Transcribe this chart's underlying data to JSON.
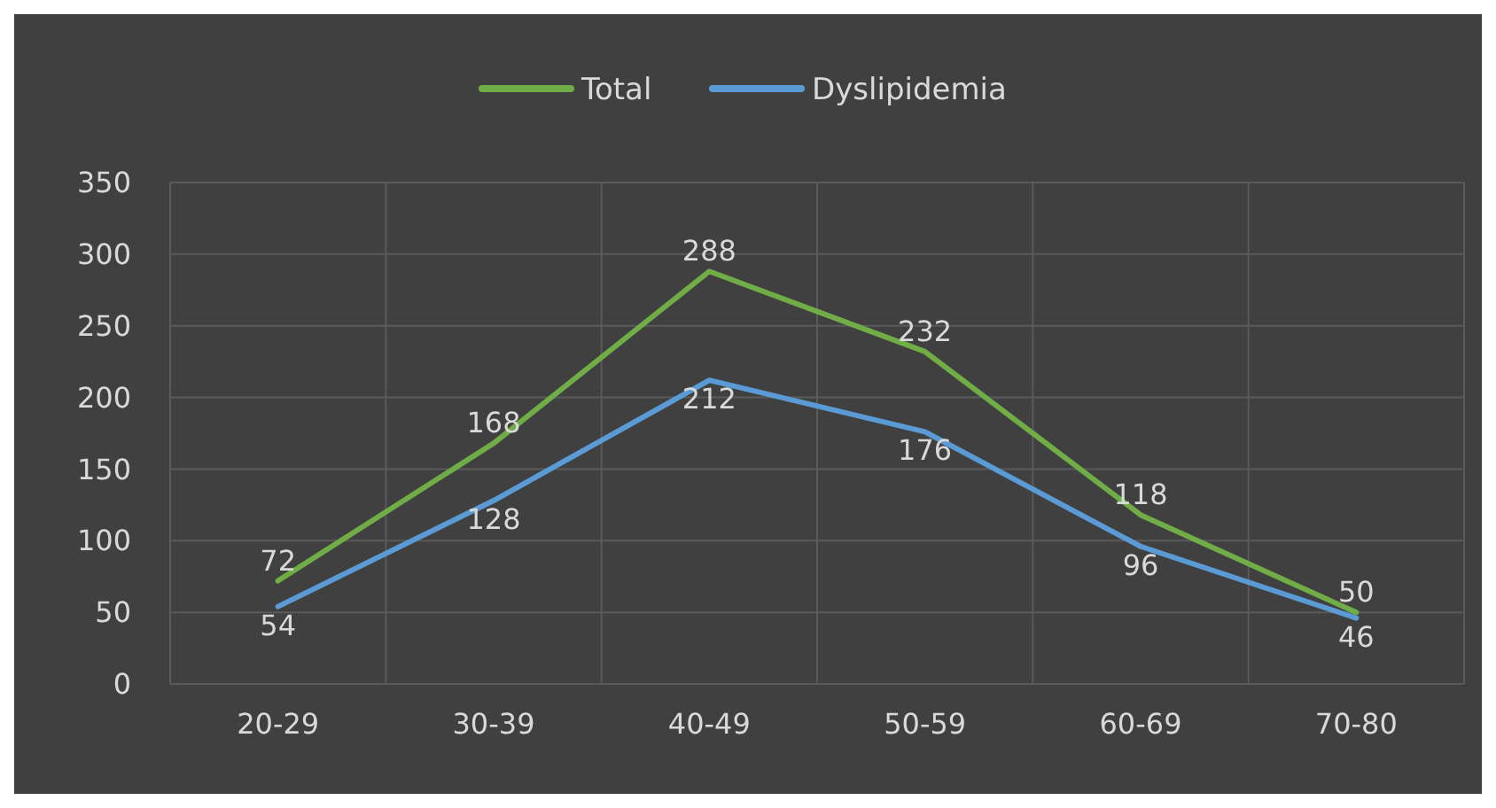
{
  "chart_data": {
    "type": "line",
    "categories": [
      "20-29",
      "30-39",
      "40-49",
      "50-59",
      "60-69",
      "70-80"
    ],
    "series": [
      {
        "name": "Total",
        "color": "#70ad47",
        "values": [
          72,
          168,
          288,
          232,
          118,
          50
        ]
      },
      {
        "name": "Dyslipidemia",
        "color": "#5b9bd5",
        "values": [
          54,
          128,
          212,
          176,
          96,
          46
        ]
      }
    ],
    "ylim": [
      0,
      350
    ],
    "yticks": [
      0,
      50,
      100,
      150,
      200,
      250,
      300,
      350
    ],
    "grid": true,
    "legend": "top",
    "data_labels": true,
    "marker": "none",
    "line_style": "solid"
  }
}
